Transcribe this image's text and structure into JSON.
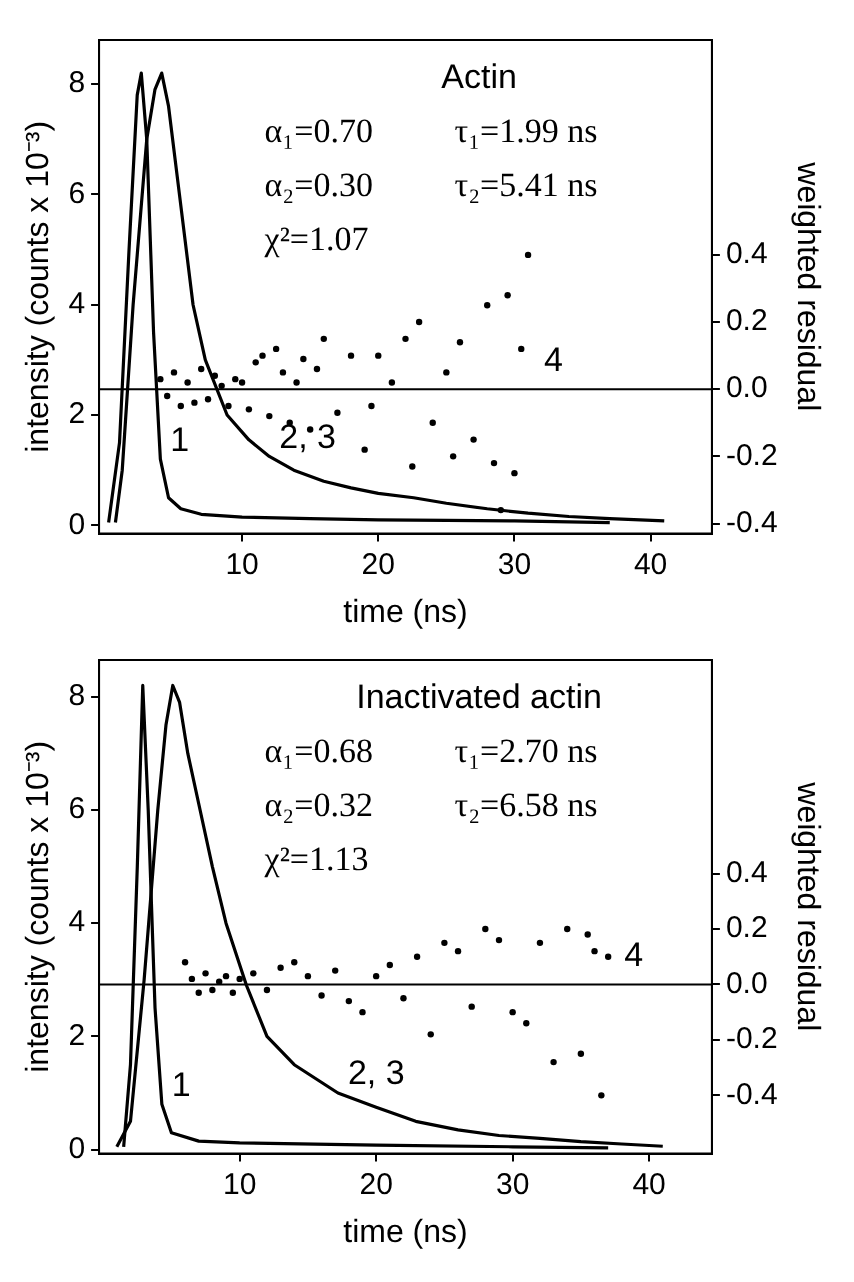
{
  "chart_data": [
    {
      "type": "line",
      "xlabel": "time (ns)",
      "ylabel": "intensity (counts x 10⁻³)",
      "y2label": "weighted residual",
      "xlim": [
        -0.5,
        44.5
      ],
      "xticks": [
        10,
        20,
        30,
        40
      ],
      "ylim": [
        -0.15,
        8.8
      ],
      "yticks": [
        0,
        2,
        4,
        6,
        8
      ],
      "y2lim": [
        -0.43,
        1.04
      ],
      "y2ticks": [
        {
          "value": -0.4,
          "label": "-0.4"
        },
        {
          "value": -0.2,
          "label": "-0.2"
        },
        {
          "value": 0,
          "label": "0.0"
        },
        {
          "value": 0.2,
          "label": "0.2"
        },
        {
          "value": 0.4,
          "label": "0.4"
        }
      ],
      "grid": false,
      "legend": false,
      "series": [
        {
          "name": "1",
          "color": "#000000",
          "x": [
            0.2,
            1.0,
            1.7,
            2.3,
            2.6,
            3.0,
            3.5,
            4.0,
            4.6,
            5.5,
            7,
            10,
            15,
            20,
            25,
            30,
            37
          ],
          "values": [
            0.05,
            1.5,
            5,
            7.8,
            8.2,
            7,
            3.5,
            1.2,
            0.5,
            0.3,
            0.2,
            0.15,
            0.12,
            0.1,
            0.09,
            0.08,
            0.05
          ]
        },
        {
          "name": "2, 3",
          "color": "#000000",
          "x": [
            0.7,
            1.2,
            2.0,
            3.0,
            3.6,
            4.1,
            4.6,
            5.4,
            6.4,
            7.3,
            8.9,
            10.5,
            12,
            13.8,
            16,
            18,
            20,
            22.6,
            25,
            28,
            31,
            34,
            37,
            41
          ],
          "values": [
            0.05,
            1,
            4,
            7,
            7.9,
            8.2,
            7.6,
            6,
            4,
            3.0,
            2,
            1.55,
            1.25,
            1,
            0.8,
            0.68,
            0.58,
            0.5,
            0.4,
            0.3,
            0.22,
            0.16,
            0.12,
            0.08
          ]
        },
        {
          "name": "4",
          "type": "scatter",
          "axis": "y2",
          "marker": "circle",
          "color": "#000000",
          "x": [
            4,
            4.5,
            5,
            5.5,
            6,
            6.5,
            7,
            7.5,
            8,
            8.5,
            9,
            9.5,
            10,
            10.5,
            11,
            11.5,
            12,
            12.5,
            13,
            13.5,
            14,
            14.5,
            15,
            15.5,
            16,
            17,
            18,
            19,
            19.5,
            20,
            21,
            22,
            22.5,
            23,
            24,
            25,
            25.5,
            26,
            27,
            28,
            28.5,
            29,
            29.5,
            30,
            30.5,
            31
          ],
          "values": [
            0.03,
            -0.02,
            0.05,
            -0.05,
            0.02,
            -0.04,
            0.06,
            -0.03,
            0.04,
            0.01,
            -0.05,
            0.03,
            0.02,
            -0.06,
            0.08,
            0.1,
            -0.08,
            0.12,
            0.05,
            -0.1,
            0.02,
            0.09,
            -0.12,
            0.06,
            0.15,
            -0.07,
            0.1,
            -0.18,
            -0.05,
            0.1,
            0.02,
            0.15,
            -0.23,
            0.2,
            -0.1,
            0.05,
            -0.2,
            0.14,
            -0.15,
            0.25,
            -0.22,
            -0.36,
            0.28,
            -0.25,
            0.12,
            0.4
          ]
        }
      ],
      "ref_lines": [
        {
          "axis": "y2",
          "value": 0,
          "color": "#000000"
        }
      ],
      "annotations": [
        "Actin",
        "α₁=0.70",
        "τ₁=1.99 ns",
        "α₂=0.30",
        "τ₂=5.41 ns",
        "χ²=1.07"
      ]
    },
    {
      "type": "line",
      "xlabel": "time (ns)",
      "ylabel": "intensity (counts x 10⁻³)",
      "y2label": "weighted residual",
      "xlim": [
        -0.3,
        44.6
      ],
      "xticks": [
        10,
        20,
        30,
        40
      ],
      "ylim": [
        -0.07,
        8.65
      ],
      "yticks": [
        0,
        2,
        4,
        6,
        8
      ],
      "y2lim": [
        -0.61,
        1.17
      ],
      "y2ticks": [
        {
          "value": -0.4,
          "label": "-0.4"
        },
        {
          "value": -0.2,
          "label": "-0.2"
        },
        {
          "value": 0,
          "label": "0.0"
        },
        {
          "value": 0.2,
          "label": "0.2"
        },
        {
          "value": 0.4,
          "label": "0.4"
        }
      ],
      "grid": false,
      "legend": false,
      "series": [
        {
          "name": "1",
          "color": "#000000",
          "x": [
            1.5,
            2.0,
            2.5,
            2.9,
            3.3,
            3.8,
            4.3,
            5,
            7,
            10,
            20,
            30,
            37
          ],
          "values": [
            0.05,
            1.5,
            5,
            8.2,
            6,
            2.5,
            0.8,
            0.3,
            0.15,
            0.12,
            0.08,
            0.05,
            0.03
          ]
        },
        {
          "name": "2, 3",
          "color": "#000000",
          "x": [
            1.0,
            2.0,
            3.0,
            4.0,
            4.6,
            5.1,
            5.6,
            6.2,
            7.1,
            8,
            9,
            10.5,
            12,
            14,
            17.2,
            20,
            22.9,
            26,
            29,
            32,
            35,
            38,
            41
          ],
          "values": [
            0.05,
            0.5,
            3,
            6,
            7.5,
            8.2,
            7.9,
            7,
            6,
            5,
            4,
            2.9,
            2,
            1.5,
            1,
            0.75,
            0.5,
            0.35,
            0.25,
            0.2,
            0.14,
            0.1,
            0.06
          ]
        },
        {
          "name": "4",
          "type": "scatter",
          "axis": "y2",
          "marker": "circle",
          "color": "#000000",
          "x": [
            6,
            6.5,
            7,
            7.5,
            8,
            8.5,
            9,
            9.5,
            10,
            11,
            12,
            13,
            14,
            15,
            16,
            17,
            18,
            19,
            20,
            21,
            22,
            23,
            24,
            25,
            26,
            27,
            28,
            29,
            30,
            31,
            32,
            33,
            34,
            35,
            35.5,
            36,
            36.5,
            37
          ],
          "values": [
            0.08,
            0.02,
            -0.03,
            0.04,
            -0.02,
            0.01,
            0.03,
            -0.03,
            0.02,
            0.04,
            -0.02,
            0.06,
            0.08,
            0.03,
            -0.04,
            0.05,
            -0.06,
            -0.1,
            0.03,
            0.07,
            -0.05,
            0.1,
            -0.18,
            0.15,
            0.12,
            -0.08,
            0.2,
            0.16,
            -0.1,
            -0.14,
            0.15,
            -0.28,
            0.2,
            -0.25,
            0.18,
            0.12,
            -0.4,
            0.1
          ]
        }
      ],
      "ref_lines": [
        {
          "axis": "y2",
          "value": 0,
          "color": "#000000"
        }
      ],
      "annotations": [
        "Inactivated actin",
        "α₁=0.68",
        "τ₁=2.70 ns",
        "α₂=0.32",
        "τ₂=6.58 ns",
        "χ²=1.13"
      ]
    }
  ]
}
